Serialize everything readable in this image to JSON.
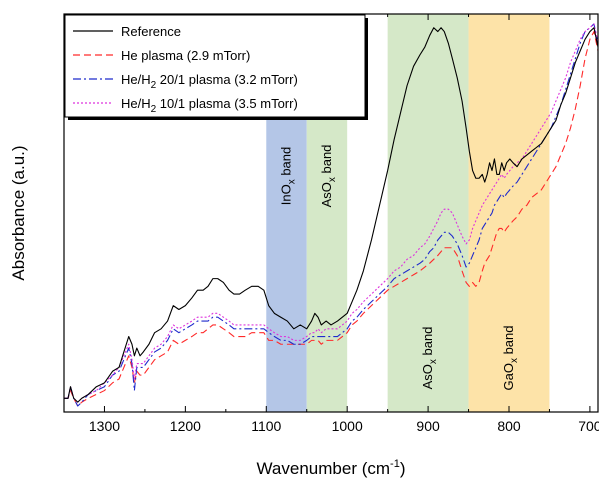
{
  "chart_data": {
    "type": "line",
    "title": "",
    "xlabel": "Wavenumber (cm",
    "xlabel_sup": "-1",
    "xlabel_end": ")",
    "ylabel": "Absorbance (a.u.)",
    "xlim": [
      1350,
      690
    ],
    "x_reversed": true,
    "ylim": [
      0,
      1
    ],
    "y_tick_labels": false,
    "x_ticks": [
      1300,
      1200,
      1100,
      1000,
      900,
      800,
      700
    ],
    "x_tick_labels": [
      "1300",
      "1200",
      "1100",
      "1000",
      "900",
      "800",
      "700"
    ],
    "legend_position": "top-left",
    "bands": [
      {
        "from": 1100,
        "to": 1050,
        "color": "#b4c6e7",
        "label_main": "InO",
        "label_sub": "x",
        "label_end": " band",
        "label_anchor": "top"
      },
      {
        "from": 1050,
        "to": 1000,
        "color": "#d5e8c8",
        "label_main": "AsO",
        "label_sub": "x",
        "label_end": " band",
        "label_anchor": "top"
      },
      {
        "from": 950,
        "to": 850,
        "color": "#d5e8c8",
        "label_main": "AsO",
        "label_sub": "x",
        "label_end": " band",
        "label_anchor": "bottom"
      },
      {
        "from": 850,
        "to": 750,
        "color": "#fde3a8",
        "label_main": "GaO",
        "label_sub": "x",
        "label_end": " band",
        "label_anchor": "bottom"
      }
    ],
    "series": [
      {
        "name_main": "Reference",
        "name_sub": "",
        "name_end": "",
        "color": "#000000",
        "dash": "",
        "x": [
          1350,
          1345,
          1342,
          1338,
          1333,
          1328,
          1320,
          1310,
          1300,
          1290,
          1282,
          1276,
          1270,
          1266,
          1263,
          1260,
          1256,
          1252,
          1245,
          1238,
          1230,
          1222,
          1215,
          1208,
          1200,
          1192,
          1185,
          1178,
          1172,
          1166,
          1160,
          1153,
          1146,
          1140,
          1133,
          1126,
          1118,
          1110,
          1103,
          1097,
          1090,
          1082,
          1074,
          1066,
          1058,
          1050,
          1044,
          1040,
          1036,
          1032,
          1026,
          1020,
          1012,
          1006,
          1000,
          994,
          988,
          980,
          970,
          960,
          950,
          942,
          934,
          926,
          918,
          910,
          904,
          898,
          893,
          888,
          884,
          880,
          875,
          870,
          864,
          858,
          853,
          849,
          845,
          841,
          837,
          833,
          830,
          827,
          824,
          821,
          818,
          815,
          812,
          809,
          806,
          803,
          799,
          795,
          790,
          784,
          778,
          772,
          766,
          760,
          754,
          748,
          742,
          736,
          730,
          724,
          718,
          712,
          706,
          700,
          695,
          690
        ],
        "y": [
          0.02,
          0.02,
          0.05,
          0.02,
          0.01,
          0.02,
          0.03,
          0.05,
          0.06,
          0.09,
          0.1,
          0.14,
          0.18,
          0.16,
          0.13,
          0.15,
          0.13,
          0.14,
          0.16,
          0.19,
          0.2,
          0.22,
          0.26,
          0.25,
          0.26,
          0.28,
          0.3,
          0.3,
          0.31,
          0.33,
          0.33,
          0.32,
          0.3,
          0.29,
          0.29,
          0.3,
          0.31,
          0.31,
          0.3,
          0.26,
          0.24,
          0.23,
          0.22,
          0.2,
          0.21,
          0.2,
          0.22,
          0.24,
          0.23,
          0.21,
          0.22,
          0.21,
          0.22,
          0.23,
          0.24,
          0.27,
          0.3,
          0.35,
          0.43,
          0.52,
          0.61,
          0.69,
          0.76,
          0.83,
          0.88,
          0.91,
          0.93,
          0.96,
          0.98,
          0.97,
          0.98,
          0.97,
          0.94,
          0.9,
          0.85,
          0.79,
          0.72,
          0.66,
          0.61,
          0.59,
          0.59,
          0.6,
          0.58,
          0.6,
          0.63,
          0.61,
          0.64,
          0.6,
          0.6,
          0.63,
          0.61,
          0.63,
          0.64,
          0.63,
          0.62,
          0.64,
          0.65,
          0.66,
          0.67,
          0.68,
          0.7,
          0.72,
          0.74,
          0.78,
          0.81,
          0.85,
          0.89,
          0.92,
          0.95,
          0.97,
          0.98,
          0.93
        ]
      },
      {
        "name_main": "He plasma (2.9 mTorr)",
        "name_sub": "",
        "name_end": "",
        "color": "#ff2a2a",
        "dash": "7,4",
        "x": [
          1350,
          1345,
          1342,
          1338,
          1333,
          1328,
          1320,
          1310,
          1300,
          1290,
          1282,
          1276,
          1270,
          1266,
          1263,
          1260,
          1256,
          1252,
          1245,
          1238,
          1230,
          1222,
          1215,
          1208,
          1200,
          1192,
          1185,
          1178,
          1172,
          1166,
          1160,
          1153,
          1146,
          1140,
          1133,
          1126,
          1118,
          1110,
          1103,
          1097,
          1090,
          1082,
          1074,
          1066,
          1058,
          1050,
          1044,
          1040,
          1036,
          1032,
          1026,
          1020,
          1012,
          1006,
          1000,
          994,
          988,
          980,
          970,
          960,
          950,
          942,
          934,
          926,
          918,
          910,
          904,
          898,
          893,
          888,
          884,
          880,
          875,
          870,
          864,
          858,
          853,
          849,
          845,
          841,
          837,
          833,
          830,
          827,
          824,
          821,
          818,
          815,
          812,
          809,
          806,
          803,
          799,
          795,
          790,
          784,
          778,
          772,
          766,
          760,
          754,
          748,
          742,
          736,
          730,
          724,
          718,
          712,
          706,
          700,
          695,
          690
        ],
        "y": [
          0.02,
          0.02,
          0.04,
          0.02,
          0.0,
          0.01,
          0.02,
          0.03,
          0.04,
          0.06,
          0.07,
          0.1,
          0.13,
          0.1,
          0.06,
          0.09,
          0.08,
          0.08,
          0.1,
          0.12,
          0.13,
          0.14,
          0.17,
          0.16,
          0.17,
          0.18,
          0.19,
          0.19,
          0.2,
          0.21,
          0.21,
          0.2,
          0.19,
          0.18,
          0.18,
          0.18,
          0.19,
          0.19,
          0.19,
          0.17,
          0.17,
          0.16,
          0.16,
          0.16,
          0.16,
          0.16,
          0.17,
          0.17,
          0.17,
          0.16,
          0.17,
          0.17,
          0.17,
          0.18,
          0.19,
          0.21,
          0.22,
          0.24,
          0.26,
          0.28,
          0.3,
          0.31,
          0.32,
          0.33,
          0.34,
          0.35,
          0.36,
          0.37,
          0.38,
          0.39,
          0.4,
          0.41,
          0.41,
          0.41,
          0.39,
          0.35,
          0.32,
          0.31,
          0.32,
          0.31,
          0.32,
          0.35,
          0.37,
          0.38,
          0.39,
          0.41,
          0.43,
          0.45,
          0.46,
          0.46,
          0.45,
          0.46,
          0.47,
          0.48,
          0.49,
          0.51,
          0.52,
          0.54,
          0.55,
          0.56,
          0.58,
          0.6,
          0.62,
          0.65,
          0.68,
          0.72,
          0.77,
          0.83,
          0.9,
          0.95,
          0.97,
          0.92
        ]
      },
      {
        "name_main": "He/H",
        "name_sub": "2",
        "name_end": " 20/1 plasma (3.2 mTorr)",
        "color": "#1f2acc",
        "dash": "8,3,2,3",
        "x": [
          1350,
          1345,
          1342,
          1338,
          1333,
          1328,
          1320,
          1310,
          1300,
          1290,
          1282,
          1276,
          1270,
          1266,
          1263,
          1260,
          1256,
          1252,
          1245,
          1238,
          1230,
          1222,
          1215,
          1208,
          1200,
          1192,
          1185,
          1178,
          1172,
          1166,
          1160,
          1153,
          1146,
          1140,
          1133,
          1126,
          1118,
          1110,
          1103,
          1097,
          1090,
          1082,
          1074,
          1066,
          1058,
          1050,
          1044,
          1040,
          1036,
          1032,
          1026,
          1020,
          1012,
          1006,
          1000,
          994,
          988,
          980,
          970,
          960,
          950,
          942,
          934,
          926,
          918,
          910,
          904,
          898,
          893,
          888,
          884,
          880,
          875,
          870,
          864,
          858,
          853,
          849,
          845,
          841,
          837,
          833,
          830,
          827,
          824,
          821,
          818,
          815,
          812,
          809,
          806,
          803,
          799,
          795,
          790,
          784,
          778,
          772,
          766,
          760,
          754,
          748,
          742,
          736,
          730,
          724,
          718,
          712,
          706,
          700,
          695,
          690
        ],
        "y": [
          0.02,
          0.02,
          0.05,
          0.02,
          0.0,
          0.01,
          0.03,
          0.04,
          0.05,
          0.08,
          0.09,
          0.12,
          0.15,
          0.11,
          0.04,
          0.1,
          0.1,
          0.1,
          0.12,
          0.14,
          0.15,
          0.17,
          0.2,
          0.19,
          0.2,
          0.21,
          0.22,
          0.22,
          0.22,
          0.23,
          0.23,
          0.22,
          0.21,
          0.2,
          0.2,
          0.2,
          0.2,
          0.2,
          0.2,
          0.19,
          0.18,
          0.17,
          0.17,
          0.16,
          0.16,
          0.17,
          0.18,
          0.18,
          0.18,
          0.18,
          0.18,
          0.18,
          0.18,
          0.19,
          0.2,
          0.22,
          0.23,
          0.25,
          0.27,
          0.29,
          0.31,
          0.33,
          0.34,
          0.35,
          0.36,
          0.37,
          0.38,
          0.4,
          0.41,
          0.43,
          0.44,
          0.45,
          0.45,
          0.44,
          0.42,
          0.39,
          0.36,
          0.37,
          0.39,
          0.41,
          0.43,
          0.46,
          0.47,
          0.48,
          0.49,
          0.5,
          0.52,
          0.53,
          0.54,
          0.55,
          0.54,
          0.55,
          0.56,
          0.57,
          0.58,
          0.6,
          0.62,
          0.64,
          0.66,
          0.68,
          0.7,
          0.72,
          0.75,
          0.78,
          0.82,
          0.86,
          0.9,
          0.94,
          0.97,
          0.98,
          0.99,
          0.94
        ]
      },
      {
        "name_main": "He/H",
        "name_sub": "2",
        "name_end": " 10/1 plasma (3.5 mTorr)",
        "color": "#dd33dd",
        "dash": "2,2",
        "x": [
          1350,
          1345,
          1342,
          1338,
          1333,
          1328,
          1320,
          1310,
          1300,
          1290,
          1282,
          1276,
          1270,
          1266,
          1263,
          1260,
          1256,
          1252,
          1245,
          1238,
          1230,
          1222,
          1215,
          1208,
          1200,
          1192,
          1185,
          1178,
          1172,
          1166,
          1160,
          1153,
          1146,
          1140,
          1133,
          1126,
          1118,
          1110,
          1103,
          1097,
          1090,
          1082,
          1074,
          1066,
          1058,
          1050,
          1044,
          1040,
          1036,
          1032,
          1026,
          1020,
          1012,
          1006,
          1000,
          994,
          988,
          980,
          970,
          960,
          950,
          942,
          934,
          926,
          918,
          910,
          904,
          898,
          893,
          888,
          884,
          880,
          875,
          870,
          864,
          858,
          853,
          849,
          845,
          841,
          837,
          833,
          830,
          827,
          824,
          821,
          818,
          815,
          812,
          809,
          806,
          803,
          799,
          795,
          790,
          784,
          778,
          772,
          766,
          760,
          754,
          748,
          742,
          736,
          730,
          724,
          718,
          712,
          706,
          700,
          695,
          690
        ],
        "y": [
          0.02,
          0.02,
          0.05,
          0.02,
          0.01,
          0.02,
          0.03,
          0.04,
          0.06,
          0.08,
          0.1,
          0.13,
          0.16,
          0.12,
          0.07,
          0.11,
          0.11,
          0.11,
          0.13,
          0.15,
          0.16,
          0.18,
          0.21,
          0.2,
          0.21,
          0.22,
          0.23,
          0.23,
          0.23,
          0.24,
          0.24,
          0.23,
          0.22,
          0.21,
          0.21,
          0.21,
          0.21,
          0.21,
          0.21,
          0.2,
          0.19,
          0.18,
          0.18,
          0.17,
          0.17,
          0.18,
          0.19,
          0.19,
          0.2,
          0.19,
          0.2,
          0.2,
          0.2,
          0.21,
          0.22,
          0.24,
          0.25,
          0.27,
          0.29,
          0.31,
          0.33,
          0.35,
          0.36,
          0.38,
          0.39,
          0.41,
          0.42,
          0.44,
          0.46,
          0.48,
          0.5,
          0.51,
          0.51,
          0.5,
          0.47,
          0.44,
          0.42,
          0.43,
          0.46,
          0.48,
          0.5,
          0.52,
          0.53,
          0.54,
          0.55,
          0.56,
          0.57,
          0.58,
          0.59,
          0.6,
          0.59,
          0.6,
          0.61,
          0.62,
          0.63,
          0.64,
          0.66,
          0.68,
          0.7,
          0.72,
          0.74,
          0.76,
          0.79,
          0.82,
          0.85,
          0.89,
          0.92,
          0.95,
          0.97,
          0.98,
          0.99,
          0.94
        ]
      }
    ]
  }
}
